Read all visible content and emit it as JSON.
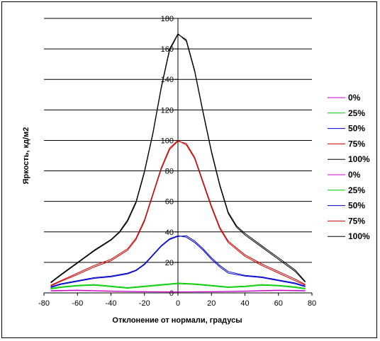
{
  "chart_data": {
    "type": "line",
    "xlabel": "Отклонение от нормали, градусы",
    "ylabel": "Яркость, кд/м2",
    "xlim": [
      -80,
      80
    ],
    "ylim": [
      0,
      180
    ],
    "x_ticks": [
      -80,
      -60,
      -40,
      -20,
      0,
      20,
      40,
      60,
      80
    ],
    "y_ticks": [
      0,
      20,
      40,
      60,
      80,
      100,
      120,
      140,
      160,
      180
    ],
    "grid": "horizontal",
    "legend_position": "right",
    "series": [
      {
        "name": "0%",
        "color": "#cc00cc",
        "x": [
          -76,
          -60,
          -40,
          -20,
          0,
          20,
          40,
          60,
          76
        ],
        "y": [
          1.5,
          1.8,
          1.2,
          0.8,
          0.7,
          0.8,
          1.2,
          1.8,
          1.5
        ]
      },
      {
        "name": "25%",
        "color": "#00cc00",
        "x": [
          -76,
          -70,
          -60,
          -50,
          -40,
          -30,
          -20,
          -10,
          0,
          10,
          20,
          30,
          40,
          50,
          60,
          70,
          76
        ],
        "y": [
          3,
          4,
          5,
          5.5,
          4.5,
          3.5,
          4.5,
          5.5,
          6.5,
          6,
          5,
          4,
          4.5,
          5.5,
          5,
          4,
          3
        ]
      },
      {
        "name": "50%",
        "color": "#0000cc",
        "x": [
          -76,
          -70,
          -60,
          -50,
          -40,
          -30,
          -25,
          -20,
          -15,
          -10,
          -5,
          0,
          5,
          10,
          15,
          20,
          25,
          30,
          40,
          50,
          60,
          70,
          76
        ],
        "y": [
          4,
          6,
          8,
          10,
          11,
          13,
          15,
          19,
          25,
          31,
          35.5,
          37.5,
          36.5,
          33,
          28,
          22,
          17,
          13,
          11,
          10,
          8,
          6,
          4
        ]
      },
      {
        "name": "75%",
        "color": "#cc0000",
        "x": [
          -76,
          -70,
          -60,
          -50,
          -40,
          -30,
          -25,
          -20,
          -15,
          -10,
          -5,
          0,
          5,
          10,
          15,
          20,
          25,
          30,
          40,
          50,
          60,
          70,
          76
        ],
        "y": [
          5,
          8,
          13,
          18,
          22,
          29,
          36,
          48,
          65,
          82,
          95,
          100,
          97,
          88,
          72,
          56,
          42,
          33,
          24,
          18,
          13,
          8,
          5
        ]
      },
      {
        "name": "100%",
        "color": "#000000",
        "x": [
          -76,
          -70,
          -60,
          -50,
          -40,
          -35,
          -30,
          -25,
          -20,
          -15,
          -10,
          -5,
          0,
          5,
          10,
          15,
          20,
          25,
          30,
          35,
          40,
          50,
          60,
          70,
          76
        ],
        "y": [
          7,
          12,
          20,
          28,
          35,
          40,
          48,
          60,
          80,
          105,
          135,
          160,
          170,
          165,
          145,
          118,
          92,
          70,
          52,
          43,
          38,
          30,
          22,
          14,
          7
        ]
      },
      {
        "name": "0%",
        "color": "#cc00cc",
        "x": [
          -76,
          -60,
          -40,
          -20,
          0,
          20,
          40,
          60,
          76
        ],
        "y": [
          1.3,
          1.6,
          1.0,
          0.7,
          0.6,
          0.7,
          1.0,
          1.6,
          1.3
        ]
      },
      {
        "name": "25%",
        "color": "#00cc00",
        "x": [
          -76,
          -70,
          -60,
          -50,
          -40,
          -30,
          -20,
          -10,
          0,
          10,
          20,
          30,
          40,
          50,
          60,
          70,
          76
        ],
        "y": [
          2.5,
          3.5,
          4.5,
          5,
          4,
          3,
          4,
          5,
          6,
          5.5,
          4.5,
          3.5,
          4,
          5,
          4.5,
          3.5,
          2.5
        ]
      },
      {
        "name": "50%",
        "color": "#0000cc",
        "x": [
          -76,
          -70,
          -60,
          -50,
          -40,
          -30,
          -25,
          -20,
          -15,
          -10,
          -5,
          0,
          5,
          10,
          15,
          20,
          25,
          30,
          40,
          50,
          60,
          70,
          76
        ],
        "y": [
          3.5,
          5.5,
          7.5,
          9.5,
          10.5,
          12.5,
          14.5,
          18.5,
          24.5,
          30.5,
          35,
          37,
          37.5,
          34,
          29,
          23,
          18,
          14,
          11.5,
          10.5,
          8.5,
          6.5,
          4.5
        ]
      },
      {
        "name": "75%",
        "color": "#cc0000",
        "x": [
          -76,
          -70,
          -60,
          -50,
          -40,
          -30,
          -25,
          -20,
          -15,
          -10,
          -5,
          0,
          5,
          10,
          15,
          20,
          25,
          30,
          40,
          50,
          60,
          70,
          76
        ],
        "y": [
          4.5,
          7.5,
          12,
          17,
          21,
          28,
          35,
          47,
          64,
          81,
          94,
          99.5,
          98,
          89,
          73,
          57,
          43,
          34,
          25,
          19,
          14,
          9,
          5.5
        ]
      },
      {
        "name": "100%",
        "color": "#000000",
        "x": [
          -76,
          -70,
          -60,
          -50,
          -40,
          -35,
          -30,
          -25,
          -20,
          -15,
          -10,
          -5,
          0,
          5,
          10,
          15,
          20,
          25,
          30,
          35,
          40,
          50,
          60,
          70,
          76
        ],
        "y": [
          6.5,
          11.5,
          19.5,
          27.5,
          34.5,
          39.5,
          47,
          59,
          79,
          104,
          134,
          159,
          169.5,
          166,
          146,
          119,
          93,
          71,
          53,
          44,
          39,
          31,
          23,
          15,
          7.5
        ]
      }
    ]
  }
}
